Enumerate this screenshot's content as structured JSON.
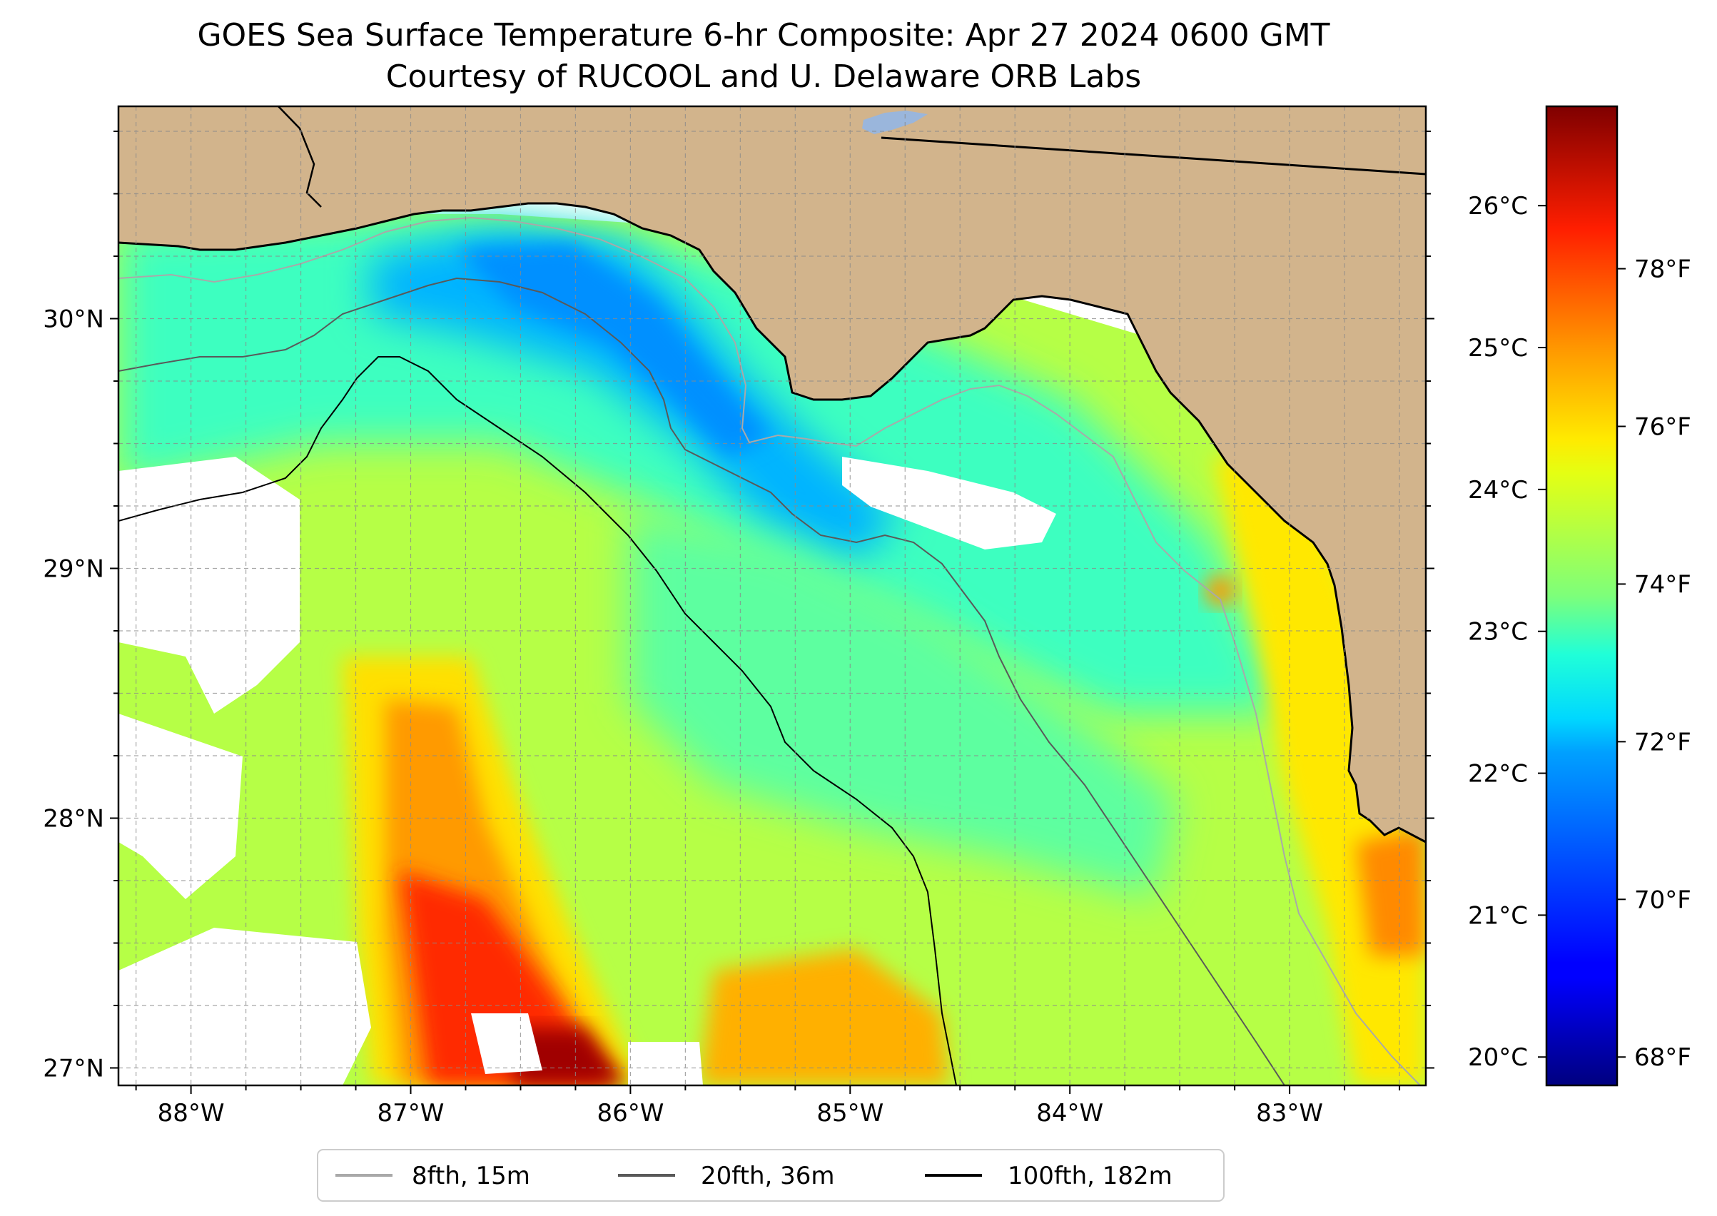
{
  "title": {
    "line1": "GOES Sea Surface Temperature 6-hr Composite: Apr 27 2024 0600 GMT",
    "line2": "Courtesy of RUCOOL and U. Delaware ORB Labs"
  },
  "map": {
    "lon_range": [
      -88.33,
      -82.38
    ],
    "lat_range": [
      26.93,
      30.85
    ],
    "lon_ticks": [
      {
        "value": -88,
        "label": "88°W"
      },
      {
        "value": -87,
        "label": "87°W"
      },
      {
        "value": -86,
        "label": "86°W"
      },
      {
        "value": -85,
        "label": "85°W"
      },
      {
        "value": -84,
        "label": "84°W"
      },
      {
        "value": -83,
        "label": "83°W"
      }
    ],
    "lat_ticks": [
      {
        "value": 27,
        "label": "27°N"
      },
      {
        "value": 28,
        "label": "28°N"
      },
      {
        "value": 29,
        "label": "29°N"
      },
      {
        "value": 30,
        "label": "30°N"
      }
    ],
    "gridline_step_deg": 0.25,
    "colors": {
      "land": "#d2b48c",
      "no_data": "#ffffff",
      "lake": "#9ab6dc"
    }
  },
  "colorbar": {
    "colormap": "jet",
    "range_celsius": [
      19.8,
      26.7
    ],
    "celsius_ticks": [
      {
        "value": 20,
        "label": "20°C"
      },
      {
        "value": 21,
        "label": "21°C"
      },
      {
        "value": 22,
        "label": "22°C"
      },
      {
        "value": 23,
        "label": "23°C"
      },
      {
        "value": 24,
        "label": "24°C"
      },
      {
        "value": 25,
        "label": "25°C"
      },
      {
        "value": 26,
        "label": "26°C"
      }
    ],
    "fahrenheit_ticks": [
      {
        "value": 68,
        "label": "68°F"
      },
      {
        "value": 70,
        "label": "70°F"
      },
      {
        "value": 72,
        "label": "72°F"
      },
      {
        "value": 74,
        "label": "74°F"
      },
      {
        "value": 76,
        "label": "76°F"
      },
      {
        "value": 78,
        "label": "78°F"
      }
    ]
  },
  "legend": {
    "items": [
      {
        "label": "8fth, 15m",
        "color": "#a9a9a9"
      },
      {
        "label": "20fth, 36m",
        "color": "#595959"
      },
      {
        "label": "100fth, 182m",
        "color": "#000000"
      }
    ]
  }
}
